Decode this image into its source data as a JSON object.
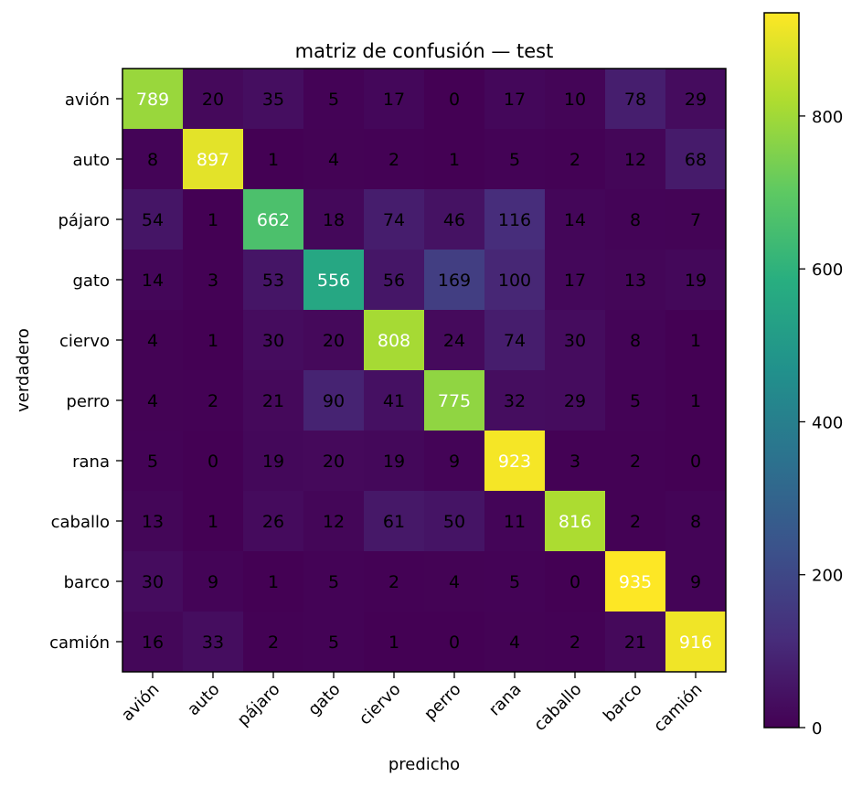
{
  "chart_data": {
    "type": "heatmap",
    "title": "matriz de confusión — test",
    "xlabel": "predicho",
    "ylabel": "verdadero",
    "x_categories": [
      "avión",
      "auto",
      "pájaro",
      "gato",
      "ciervo",
      "perro",
      "rana",
      "caballo",
      "barco",
      "camión"
    ],
    "y_categories": [
      "avión",
      "auto",
      "pájaro",
      "gato",
      "ciervo",
      "perro",
      "rana",
      "caballo",
      "barco",
      "camión"
    ],
    "values": [
      [
        789,
        20,
        35,
        5,
        17,
        0,
        17,
        10,
        78,
        29
      ],
      [
        8,
        897,
        1,
        4,
        2,
        1,
        5,
        2,
        12,
        68
      ],
      [
        54,
        1,
        662,
        18,
        74,
        46,
        116,
        14,
        8,
        7
      ],
      [
        14,
        3,
        53,
        556,
        56,
        169,
        100,
        17,
        13,
        19
      ],
      [
        4,
        1,
        30,
        20,
        808,
        24,
        74,
        30,
        8,
        1
      ],
      [
        4,
        2,
        21,
        90,
        41,
        775,
        32,
        29,
        5,
        1
      ],
      [
        5,
        0,
        19,
        20,
        19,
        9,
        923,
        3,
        2,
        0
      ],
      [
        13,
        1,
        26,
        12,
        61,
        50,
        11,
        816,
        2,
        8
      ],
      [
        30,
        9,
        1,
        5,
        2,
        4,
        5,
        0,
        935,
        9
      ],
      [
        16,
        33,
        2,
        5,
        1,
        0,
        4,
        2,
        21,
        916
      ]
    ],
    "colormap": "viridis",
    "value_range": [
      0,
      935
    ],
    "colorbar_ticks": [
      0,
      200,
      400,
      600,
      800
    ],
    "colorbar_tick_labels": [
      "0",
      "200",
      "400",
      "600",
      "800"
    ],
    "label_colors": {
      "light": "#ffffff",
      "dark": "#000000"
    },
    "grid": false,
    "x_tick_rotation_deg": 45
  }
}
